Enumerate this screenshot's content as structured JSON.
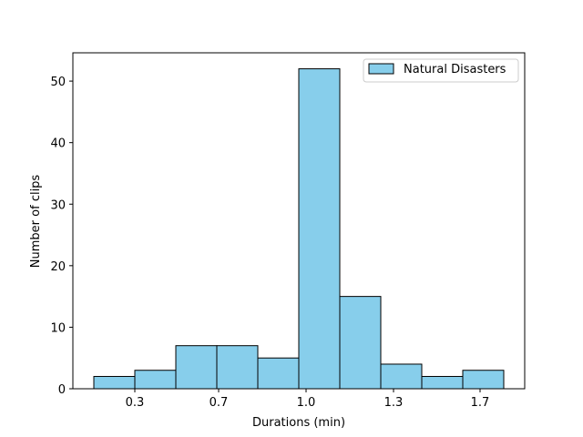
{
  "chart_data": {
    "type": "bar",
    "title": "",
    "xlabel": "Durations (min)",
    "ylabel": "Number of clips",
    "xlim": [
      0.14,
      1.89
    ],
    "ylim": [
      0,
      54.6
    ],
    "xticks": [
      0.3,
      0.7,
      1.0,
      1.3,
      1.7
    ],
    "xtick_labels": [
      "0.3",
      "0.7",
      "1.0",
      "1.3",
      "1.7"
    ],
    "yticks": [
      0,
      10,
      20,
      30,
      40,
      50
    ],
    "grid": false,
    "legend": {
      "position": "top-right",
      "entries": [
        "Natural Disasters"
      ]
    },
    "bar_color": "#87CEEB",
    "edge_color": "#000000",
    "bins": [
      {
        "start": 0.22,
        "end": 0.404,
        "count": 2
      },
      {
        "start": 0.404,
        "end": 0.588,
        "count": 3
      },
      {
        "start": 0.588,
        "end": 0.772,
        "count": 7
      },
      {
        "start": 0.772,
        "end": 0.956,
        "count": 7
      },
      {
        "start": 0.956,
        "end": 1.14,
        "count": 5
      },
      {
        "start": 1.14,
        "end": 1.324,
        "count": 52
      },
      {
        "start": 1.324,
        "end": 1.508,
        "count": 15
      },
      {
        "start": 1.508,
        "end": 1.692,
        "count": 4
      },
      {
        "start": 1.692,
        "end": 1.876,
        "count": 2
      },
      {
        "start": 1.876,
        "end": 2.06,
        "count": 3
      }
    ],
    "series": [
      {
        "name": "Natural Disasters"
      }
    ]
  }
}
